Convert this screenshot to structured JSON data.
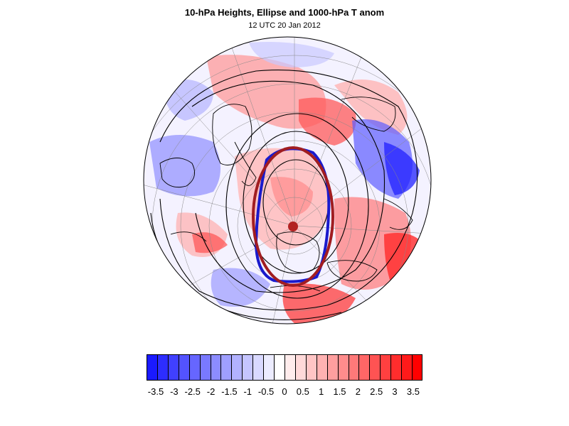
{
  "title": "10-hPa Heights, Ellipse and 1000-hPa T anom",
  "subtitle": "12 UTC 20 Jan 2012",
  "colors": {
    "contour": "#000000",
    "ellipse_fitted": "#a11d21",
    "contour_10hpa": "#1a1acc",
    "centroid": "#b22222",
    "cold_max": "#0000ff",
    "warm_max": "#ff0000",
    "neutral": "#ffffff"
  },
  "colorbar": {
    "colors": [
      "#1a1aff",
      "#2d2dff",
      "#4040ff",
      "#5353ff",
      "#6666ff",
      "#7979ff",
      "#8c8cff",
      "#9f9fff",
      "#b2b2ff",
      "#c5c5ff",
      "#d9d9ff",
      "#ececff",
      "#ffffff",
      "#ffecec",
      "#ffd9d9",
      "#ffc5c5",
      "#ffb2b2",
      "#ff9f9f",
      "#ff8c8c",
      "#ff7979",
      "#ff6666",
      "#ff5353",
      "#ff4040",
      "#ff2d2d",
      "#ff1a1a",
      "#ff0000"
    ],
    "labels": [
      "-3.5",
      "-3",
      "-2.5",
      "-2",
      "-1.5",
      "-1",
      "-0.5",
      "0",
      "0.5",
      "1",
      "1.5",
      "2",
      "2.5",
      "3",
      "3.5"
    ]
  }
}
